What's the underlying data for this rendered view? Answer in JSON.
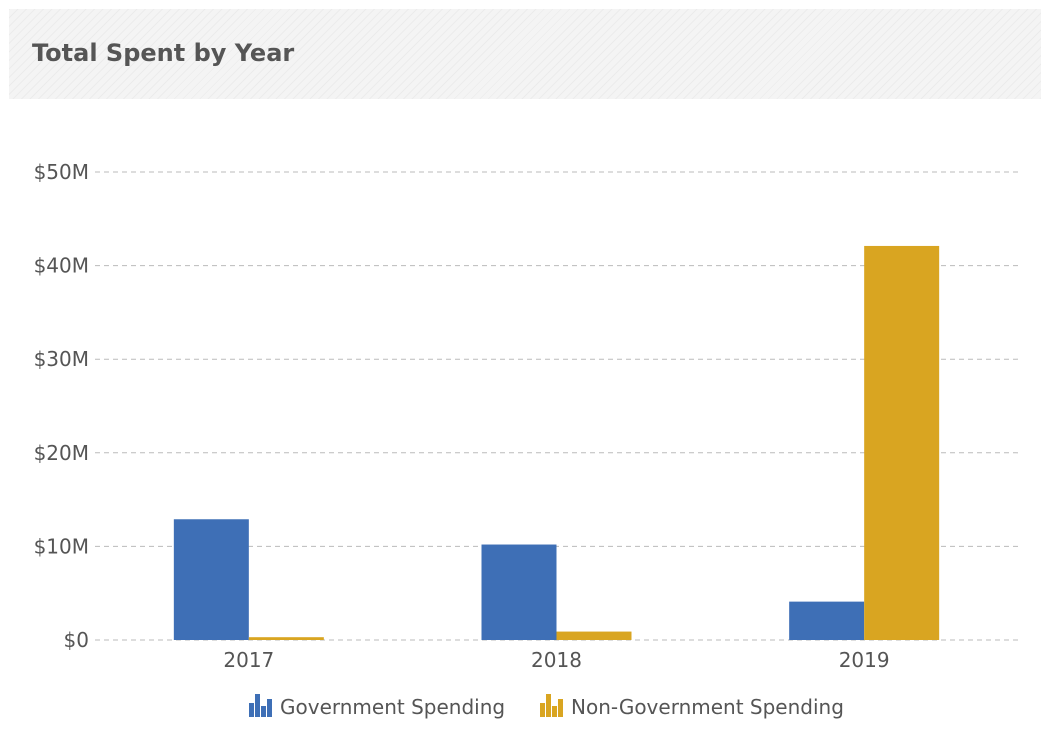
{
  "header": {
    "title": "Total Spent by Year"
  },
  "colors": {
    "government": "#3e6fb6",
    "non_government": "#d9a521",
    "grid": "#bbbbbb",
    "text": "#555555"
  },
  "chart_data": {
    "type": "bar",
    "title": "Total Spent by Year",
    "categories": [
      "2017",
      "2018",
      "2019"
    ],
    "series": [
      {
        "name": "Government Spending",
        "values": [
          12.9,
          10.2,
          4.1
        ],
        "color": "#3e6fb6"
      },
      {
        "name": "Non-Government Spending",
        "values": [
          0.3,
          0.9,
          42.1
        ],
        "color": "#d9a521"
      }
    ],
    "unit": "millions USD",
    "ylim": [
      0,
      50
    ],
    "yticks": [
      {
        "value": 0,
        "label": "$0"
      },
      {
        "value": 10,
        "label": "$10M"
      },
      {
        "value": 20,
        "label": "$20M"
      },
      {
        "value": 30,
        "label": "$30M"
      },
      {
        "value": 40,
        "label": "$40M"
      },
      {
        "value": 50,
        "label": "$50M"
      }
    ],
    "grid": true,
    "legend_position": "bottom"
  }
}
